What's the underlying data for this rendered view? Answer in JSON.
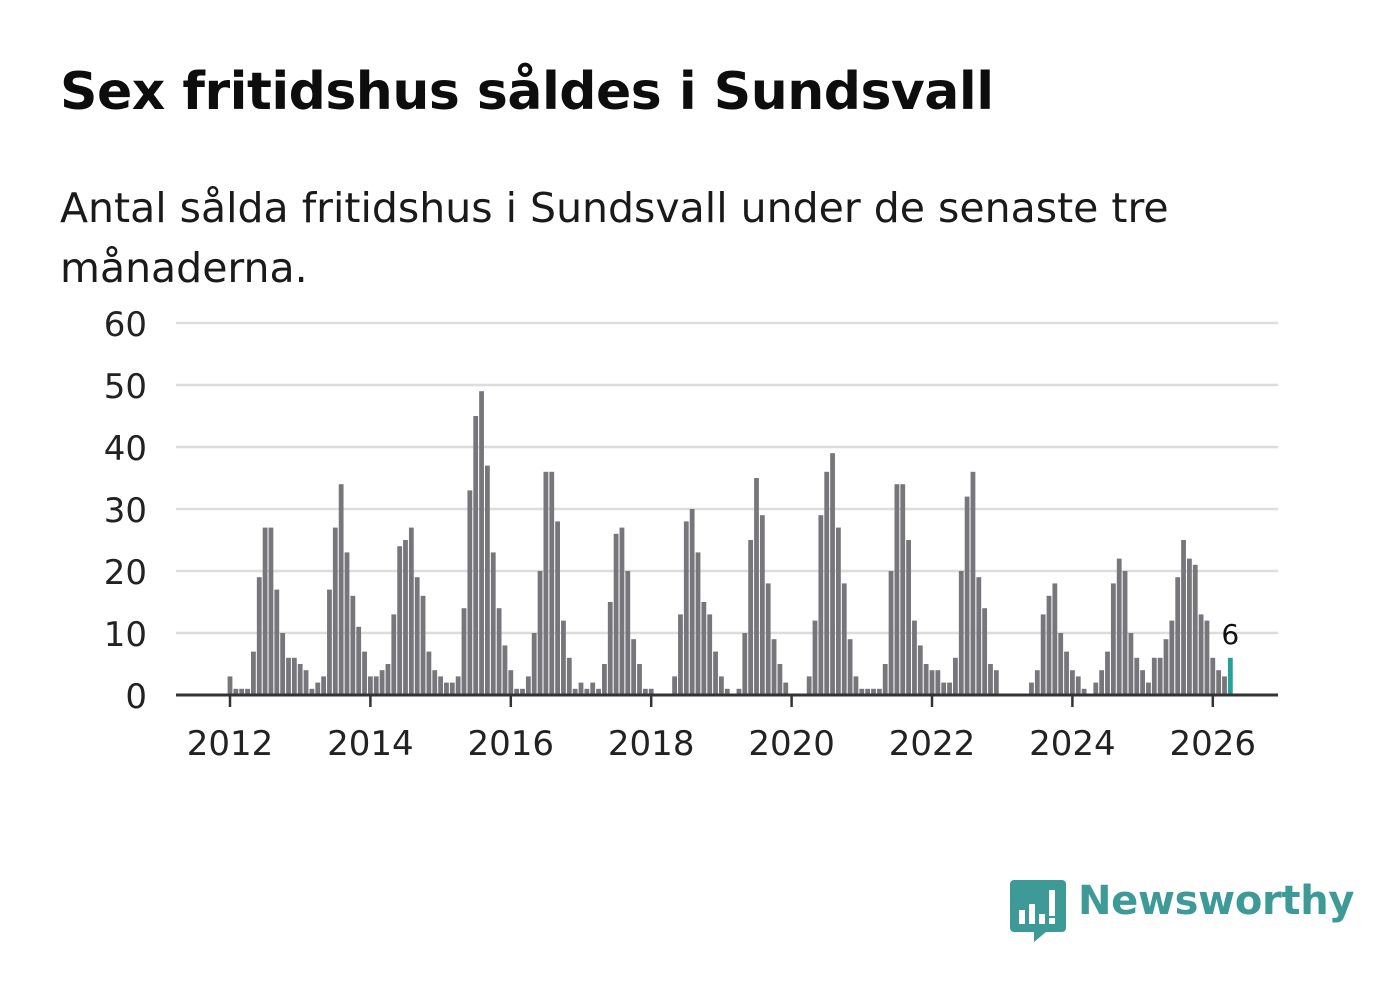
{
  "header": {
    "title": "Sex fritidshus såldes i Sundsvall",
    "subtitle": "Antal sålda fritidshus i Sundsvall under de senaste tre månaderna."
  },
  "brand": {
    "name": "Newsworthy",
    "color": "#3d9a97",
    "logo_icon": "bar-chart-speech-bubble-icon"
  },
  "colors": {
    "bar": "#77767b",
    "highlight": "#24a39a",
    "grid": "#dddddd",
    "axis": "#333333"
  },
  "chart_data": {
    "type": "bar",
    "title": "Sex fritidshus såldes i Sundsvall",
    "xlabel": "",
    "ylabel": "",
    "ylim": [
      0,
      60
    ],
    "yticks": [
      "0",
      "10",
      "20",
      "30",
      "40",
      "50",
      "60"
    ],
    "xticks": [
      "2012",
      "2014",
      "2016",
      "2018",
      "2020",
      "2022",
      "2024",
      "2026"
    ],
    "grid": true,
    "start": "2011-08",
    "frequency": "monthly",
    "values": [
      0,
      0,
      0,
      0,
      0,
      3,
      1,
      1,
      1,
      7,
      19,
      27,
      27,
      17,
      10,
      6,
      6,
      5,
      4,
      1,
      2,
      3,
      17,
      27,
      34,
      23,
      16,
      11,
      7,
      3,
      3,
      4,
      5,
      13,
      24,
      25,
      27,
      19,
      16,
      7,
      4,
      3,
      2,
      2,
      3,
      14,
      33,
      45,
      49,
      37,
      23,
      14,
      8,
      4,
      1,
      1,
      3,
      10,
      20,
      36,
      36,
      28,
      12,
      6,
      1,
      2,
      1,
      2,
      1,
      5,
      15,
      26,
      27,
      20,
      9,
      5,
      1,
      1,
      0,
      0,
      0,
      3,
      13,
      28,
      30,
      23,
      15,
      13,
      7,
      3,
      1,
      0,
      1,
      10,
      25,
      35,
      29,
      18,
      9,
      5,
      2,
      0,
      0,
      0,
      3,
      12,
      29,
      36,
      39,
      27,
      18,
      9,
      3,
      1,
      1,
      1,
      1,
      5,
      20,
      34,
      34,
      25,
      12,
      8,
      5,
      4,
      4,
      2,
      2,
      6,
      20,
      32,
      36,
      19,
      14,
      5,
      4,
      0,
      0,
      0,
      0,
      0,
      2,
      4,
      13,
      16,
      18,
      10,
      7,
      4,
      3,
      1,
      0,
      2,
      4,
      7,
      18,
      22,
      20,
      10,
      6,
      4,
      2,
      6,
      6,
      9,
      12,
      19,
      25,
      22,
      21,
      13,
      12,
      6,
      4,
      3,
      6
    ],
    "highlight": {
      "label": "6",
      "value": 6
    }
  }
}
